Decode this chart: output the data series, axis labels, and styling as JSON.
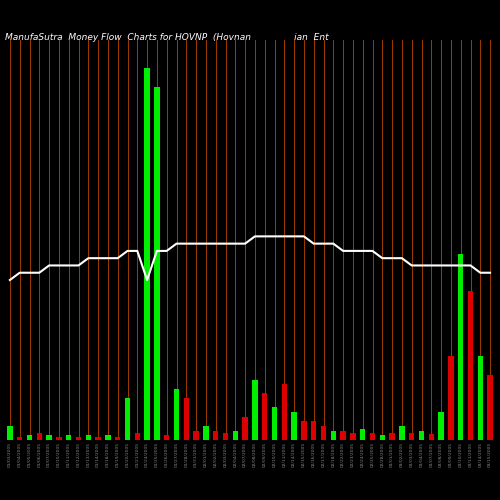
{
  "title": "ManufaSutra  Money Flow  Charts for HOVNP  (Hovnan               ian  Ent",
  "background_color": "#000000",
  "figsize": [
    5.0,
    5.0
  ],
  "dpi": 100,
  "categories": [
    "01/03/2005",
    "01/04/2005",
    "01/05/2005",
    "01/06/2005",
    "01/07/2005",
    "01/10/2005",
    "01/11/2005",
    "01/12/2005",
    "01/13/2005",
    "01/14/2005",
    "01/18/2005",
    "01/19/2005",
    "01/20/2005",
    "01/21/2005",
    "01/24/2005",
    "01/25/2005",
    "01/26/2005",
    "01/27/2005",
    "01/28/2005",
    "01/31/2005",
    "02/01/2005",
    "02/02/2005",
    "02/03/2005",
    "02/04/2005",
    "02/07/2005",
    "02/08/2005",
    "02/09/2005",
    "02/10/2005",
    "02/11/2005",
    "02/14/2005",
    "02/15/2005",
    "02/16/2005",
    "02/17/2005",
    "02/18/2005",
    "02/22/2005",
    "02/23/2005",
    "02/24/2005",
    "02/25/2005",
    "02/28/2005",
    "03/01/2005",
    "03/02/2005",
    "03/03/2005",
    "03/04/2005",
    "03/07/2005",
    "03/08/2005",
    "03/09/2005",
    "03/10/2005",
    "03/11/2005",
    "03/14/2005",
    "03/15/2005"
  ],
  "bar_values": [
    15,
    3,
    5,
    8,
    5,
    3,
    5,
    3,
    5,
    3,
    5,
    3,
    45,
    8,
    400,
    380,
    5,
    55,
    45,
    10,
    15,
    10,
    8,
    10,
    25,
    65,
    50,
    35,
    60,
    30,
    20,
    20,
    15,
    10,
    10,
    8,
    12,
    8,
    5,
    8,
    15,
    8,
    10,
    6,
    30,
    90,
    200,
    160,
    90,
    70
  ],
  "bar_colors": [
    "green",
    "red",
    "green",
    "red",
    "green",
    "red",
    "green",
    "red",
    "green",
    "red",
    "green",
    "red",
    "green",
    "red",
    "green",
    "green",
    "red",
    "green",
    "red",
    "red",
    "green",
    "red",
    "red",
    "green",
    "red",
    "green",
    "red",
    "green",
    "red",
    "green",
    "red",
    "red",
    "red",
    "green",
    "red",
    "red",
    "green",
    "red",
    "green",
    "red",
    "green",
    "red",
    "green",
    "red",
    "green",
    "red",
    "green",
    "red",
    "green",
    "red"
  ],
  "line_values": [
    162,
    163,
    163,
    163,
    164,
    164,
    164,
    164,
    165,
    165,
    165,
    165,
    166,
    166,
    162,
    166,
    166,
    167,
    167,
    167,
    167,
    167,
    167,
    167,
    167,
    168,
    168,
    168,
    168,
    168,
    168,
    167,
    167,
    167,
    166,
    166,
    166,
    166,
    165,
    165,
    165,
    164,
    164,
    164,
    164,
    164,
    164,
    164,
    163,
    163
  ],
  "line_ylim_min": 140,
  "line_ylim_max": 195,
  "bar_ylim_max": 430,
  "orange_color": "#bb4400"
}
